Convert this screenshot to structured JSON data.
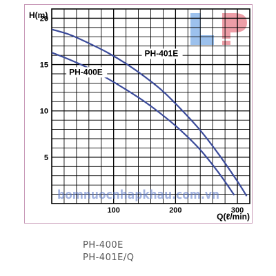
{
  "chart_data": {
    "type": "line",
    "xlabel": "Q(ℓ/min)",
    "ylabel": "H(m)",
    "xlim": [
      0,
      320
    ],
    "ylim": [
      0,
      21
    ],
    "x_ticks": [
      100,
      200,
      300
    ],
    "y_ticks": [
      5,
      10,
      15,
      20
    ],
    "grid": true,
    "series": [
      {
        "name": "PH-401E",
        "x": [
          0,
          30,
          60,
          90,
          120,
          150,
          180,
          210,
          240,
          270,
          300,
          315
        ],
        "y": [
          18.8,
          18.2,
          17.3,
          16.3,
          15.1,
          13.7,
          12.1,
          10.1,
          7.9,
          5.3,
          2.4,
          0.8
        ]
      },
      {
        "name": "PH-400E",
        "x": [
          0,
          30,
          60,
          90,
          120,
          150,
          180,
          210,
          240,
          270,
          295
        ],
        "y": [
          16.3,
          15.5,
          14.6,
          13.5,
          12.3,
          11.0,
          9.5,
          7.8,
          5.8,
          3.3,
          0.9
        ]
      }
    ],
    "watermark": "bomnuocnhapkhau.com.vn",
    "logo": "LP",
    "colors": {
      "curve": "#3a4a9a",
      "grid": "#000000",
      "watermark": "#5a78c8"
    }
  },
  "captions": [
    "PH-400E",
    "PH-401E/Q"
  ]
}
